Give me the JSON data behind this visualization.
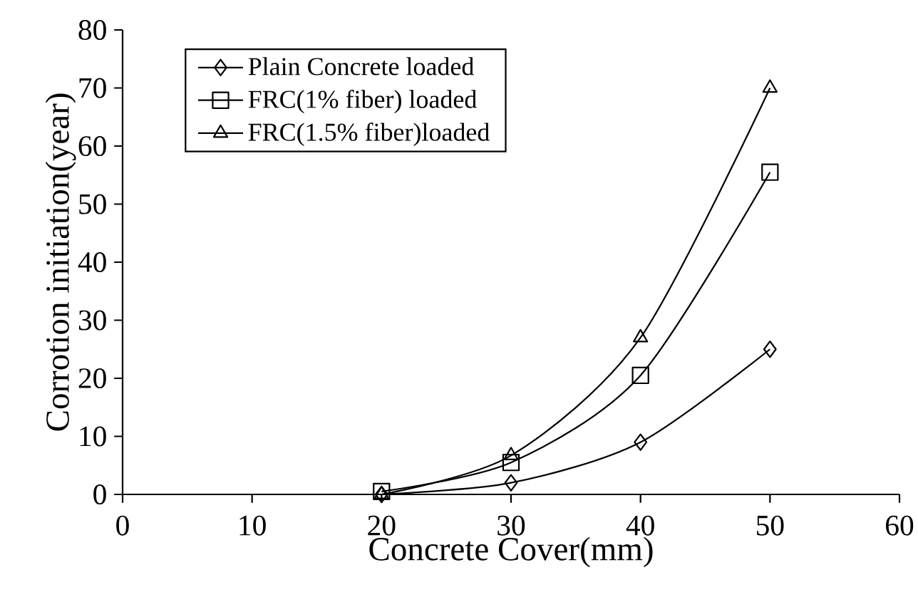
{
  "chart_data": {
    "type": "line",
    "xlabel": "Concrete Cover(mm)",
    "ylabel": "Corrotion initiation(year)",
    "x": [
      20,
      30,
      40,
      50
    ],
    "series": [
      {
        "name": "Plain Concrete loaded",
        "color": "#000000",
        "marker": "diamond",
        "values": [
          0,
          2,
          9,
          25
        ]
      },
      {
        "name": "FRC(1% fiber) loaded",
        "color": "#000000",
        "marker": "square",
        "values": [
          0.5,
          5.5,
          20.5,
          55.5
        ]
      },
      {
        "name": "FRC(1.5% fiber)loaded",
        "color": "#000000",
        "marker": "triangle",
        "values": [
          0,
          6.7,
          27,
          70
        ]
      }
    ],
    "xlim": [
      0,
      60
    ],
    "ylim": [
      0,
      80
    ],
    "xticks": [
      0,
      10,
      20,
      30,
      40,
      50,
      60
    ],
    "yticks": [
      0,
      10,
      20,
      30,
      40,
      50,
      60,
      70,
      80
    ],
    "grid": false,
    "legend": "top left",
    "line_style": "solid"
  }
}
